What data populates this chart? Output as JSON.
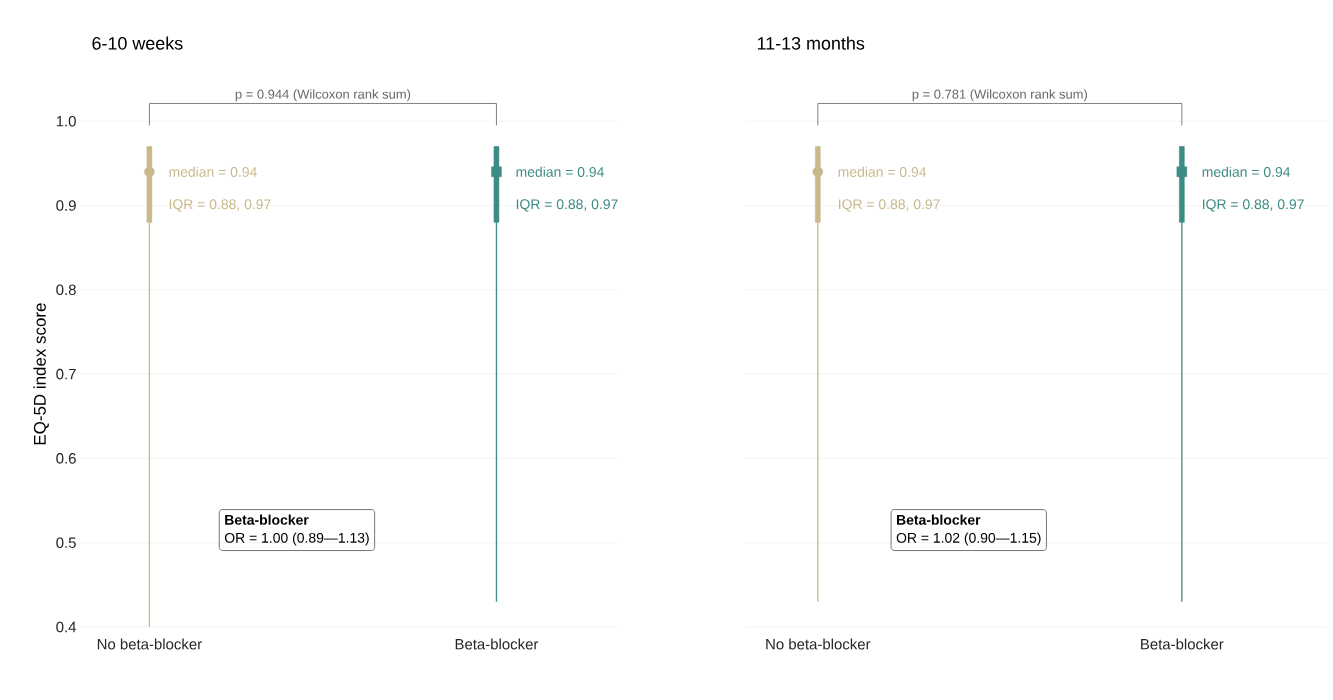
{
  "chart_data": [
    {
      "type": "box",
      "title": "6-10  weeks",
      "ylabel": "EQ-5D index score",
      "categories": [
        "No beta-blocker",
        "Beta-blocker"
      ],
      "series": [
        {
          "color": "#c8b88a",
          "marker": "circle",
          "boxes": [
            {
              "low": 0.4,
              "q1": 0.88,
              "median": 0.94,
              "q3": 0.97,
              "high": 0.97
            },
            null
          ]
        },
        {
          "color": "#3d8b85",
          "marker": "square",
          "boxes": [
            null,
            {
              "low": 0.43,
              "q1": 0.88,
              "median": 0.94,
              "q3": 0.97,
              "high": 0.97
            }
          ]
        }
      ],
      "ylim": [
        0.4,
        1.0
      ],
      "yticks": [
        0.4,
        0.5,
        0.6,
        0.7,
        0.8,
        0.9,
        {
          "value": 1.0,
          "label": "1.0"
        }
      ],
      "grid": "y",
      "annotations": [
        "p = 0.944 (Wilcoxon rank sum)",
        "Beta-blocker",
        "OR = 1.00  (0.89—1.13)",
        "median = 0.94",
        "IQR = 0.88, 0.97",
        "median =  0.94",
        "IQR = 0.88, 0.97"
      ]
    },
    {
      "type": "box",
      "title": "11-13  months",
      "categories": [
        "No beta-blocker",
        "Beta-blocker"
      ],
      "series": [
        {
          "color": "#c8b88a",
          "marker": "circle",
          "boxes": [
            {
              "low": 0.43,
              "q1": 0.88,
              "median": 0.94,
              "q3": 0.97,
              "high": 0.97
            },
            null
          ]
        },
        {
          "color": "#3d8b85",
          "marker": "square",
          "boxes": [
            null,
            {
              "low": 0.43,
              "q1": 0.88,
              "median": 0.94,
              "q3": 0.97,
              "high": 0.97
            }
          ]
        }
      ],
      "ylim": [
        0.4,
        1.0
      ],
      "yticks": [
        0.4,
        0.5,
        0.6,
        0.7,
        0.8,
        0.9,
        1.0
      ],
      "grid": "y",
      "tick_labels": "x",
      "annotations": [
        "p = 0.781 (Wilcoxon rank sum)",
        "Beta-blocker",
        "OR = 1.02  (0.90—1.15)",
        "median = 0.94",
        "IQR = 0.88, 0.97",
        "median =  0.94",
        "IQR = 0.88, 0.97"
      ]
    }
  ]
}
